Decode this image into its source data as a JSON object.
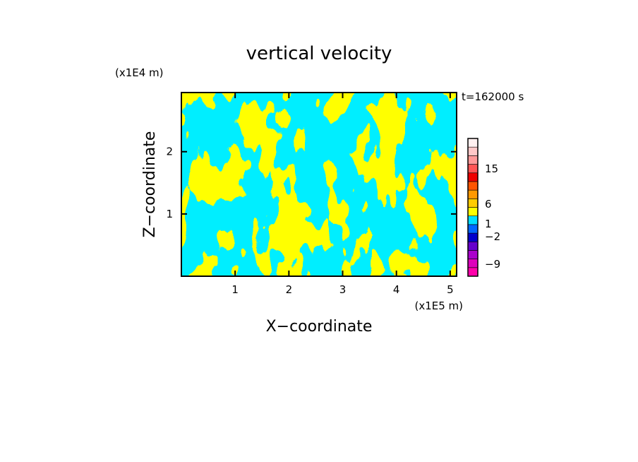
{
  "chart_data": {
    "type": "heatmap",
    "title": "vertical velocity",
    "time_label": "t=162000 s",
    "xlabel": "X−coordinate",
    "ylabel": "Z−coordinate",
    "x_unit_label": "(x1E5 m)",
    "y_unit_label": "(x1E4 m)",
    "xlim": [
      0,
      5.12
    ],
    "ylim": [
      0,
      2.95
    ],
    "x_ticks": [
      1,
      2,
      3,
      4,
      5
    ],
    "y_ticks": [
      1,
      2
    ],
    "x_tick_labels": [
      "1",
      "2",
      "3",
      "4",
      "5"
    ],
    "y_tick_labels": [
      "1",
      "2"
    ],
    "field_colors": {
      "upward": "#ffff00",
      "downward": "#00eeff"
    },
    "colorbar": {
      "tick_labels": [
        "15",
        "6",
        "1",
        "−2",
        "−9"
      ],
      "levels": [
        {
          "color": "#ff00aa"
        },
        {
          "color": "#dd00bb"
        },
        {
          "color": "#aa00cc"
        },
        {
          "color": "#6600cc"
        },
        {
          "color": "#0000cc"
        },
        {
          "color": "#0066ff"
        },
        {
          "color": "#00ddff"
        },
        {
          "color": "#ffff00"
        },
        {
          "color": "#ffcc00"
        },
        {
          "color": "#ff9900"
        },
        {
          "color": "#ff5500"
        },
        {
          "color": "#ee0000"
        },
        {
          "color": "#ff5555"
        },
        {
          "color": "#ff9999"
        },
        {
          "color": "#ffc8c8"
        },
        {
          "color": "#fff0f0"
        }
      ]
    }
  }
}
